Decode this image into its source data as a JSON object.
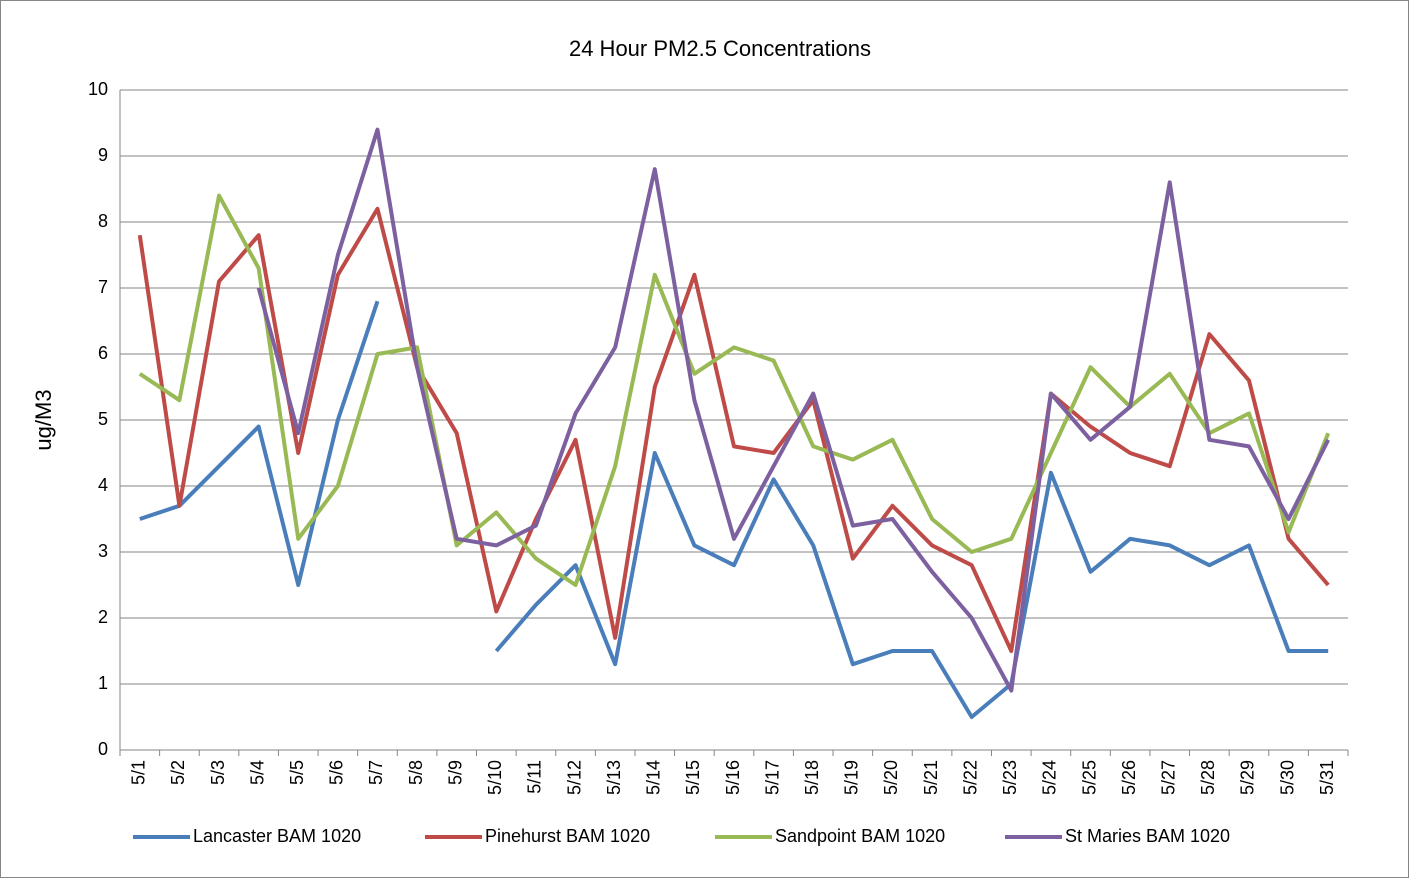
{
  "chart_data": {
    "type": "line",
    "title": "24 Hour PM2.5 Concentrations",
    "y_label": "ug/M3",
    "categories": [
      "5/1",
      "5/2",
      "5/3",
      "5/4",
      "5/5",
      "5/6",
      "5/7",
      "5/8",
      "5/9",
      "5/10",
      "5/11",
      "5/12",
      "5/13",
      "5/14",
      "5/15",
      "5/16",
      "5/17",
      "5/18",
      "5/19",
      "5/20",
      "5/21",
      "5/22",
      "5/23",
      "5/24",
      "5/25",
      "5/26",
      "5/27",
      "5/28",
      "5/29",
      "5/30",
      "5/31"
    ],
    "series": [
      {
        "name": "Lancaster BAM 1020",
        "color": "#4a7ebb",
        "values": [
          3.5,
          3.7,
          4.3,
          4.9,
          2.5,
          5.0,
          6.8,
          null,
          null,
          1.5,
          2.2,
          2.8,
          1.3,
          4.5,
          3.1,
          2.8,
          4.1,
          3.1,
          1.3,
          1.5,
          1.5,
          0.5,
          1.0,
          4.2,
          2.7,
          3.2,
          3.1,
          2.8,
          3.1,
          1.5,
          1.5
        ]
      },
      {
        "name": "Pinehurst BAM 1020",
        "color": "#be4b48",
        "values": [
          7.8,
          3.7,
          7.1,
          7.8,
          4.5,
          7.2,
          8.2,
          5.8,
          4.8,
          2.1,
          3.5,
          4.7,
          1.7,
          5.5,
          7.2,
          4.6,
          4.5,
          5.3,
          2.9,
          3.7,
          3.1,
          2.8,
          1.5,
          5.4,
          4.9,
          4.5,
          4.3,
          6.3,
          5.6,
          3.2,
          2.5
        ]
      },
      {
        "name": "Sandpoint BAM 1020",
        "color": "#98b954",
        "values": [
          5.7,
          5.3,
          8.4,
          7.3,
          3.2,
          4.0,
          6.0,
          6.1,
          3.1,
          3.6,
          2.9,
          2.5,
          4.3,
          7.2,
          5.7,
          6.1,
          5.9,
          4.6,
          4.4,
          4.7,
          3.5,
          3.0,
          3.2,
          4.5,
          5.8,
          5.2,
          5.7,
          4.8,
          5.1,
          3.3,
          4.8
        ]
      },
      {
        "name": "St Maries BAM 1020",
        "color": "#7d60a0",
        "values": [
          null,
          null,
          null,
          7.0,
          4.8,
          7.5,
          9.4,
          5.8,
          3.2,
          3.1,
          3.4,
          5.1,
          6.1,
          8.8,
          5.3,
          3.2,
          4.3,
          5.4,
          3.4,
          3.5,
          2.7,
          2.0,
          0.9,
          5.4,
          4.7,
          5.2,
          8.6,
          4.7,
          4.6,
          3.5,
          4.7
        ]
      }
    ],
    "ylim": [
      0,
      10
    ],
    "yticks": [
      0,
      1,
      2,
      3,
      4,
      5,
      6,
      7,
      8,
      9,
      10
    ],
    "grid": true,
    "legend": "bottom"
  }
}
